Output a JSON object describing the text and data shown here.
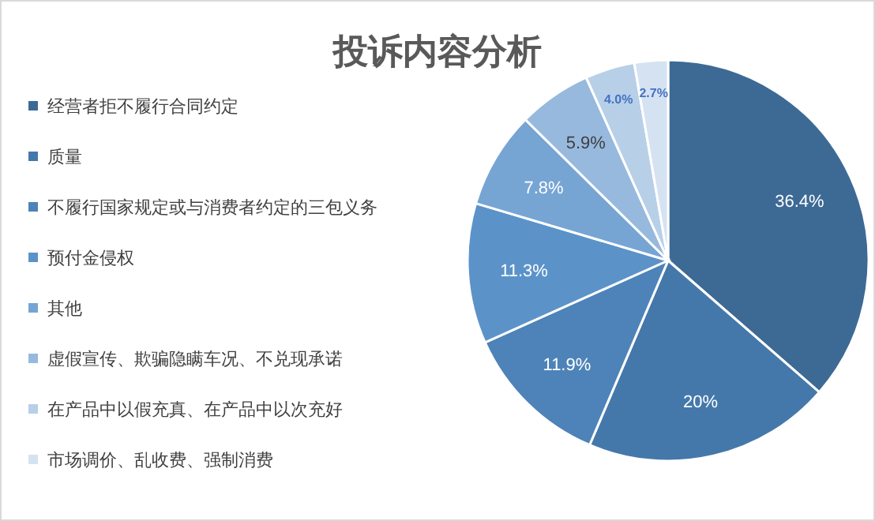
{
  "chart_data": {
    "type": "pie",
    "title": "投诉内容分析",
    "categories": [
      "经营者拒不履行合同约定",
      "质量",
      "不履行国家规定或与消费者约定的三包义务",
      "预付金侵权",
      "其他",
      "虚假宣传、欺骗隐瞒车况、不兑现承诺",
      "在产品中以假充真、在产品中以次充好",
      "市场调价、乱收费、强制消费"
    ],
    "values": [
      36.4,
      20,
      11.9,
      11.3,
      7.8,
      5.9,
      4.0,
      2.7
    ],
    "colors": [
      "#3d6a95",
      "#4578aa",
      "#4d83b8",
      "#5b93c9",
      "#76a5d4",
      "#97b9de",
      "#b8cfe8",
      "#d5e2f2"
    ],
    "value_labels": [
      "36.4%",
      "20%",
      "11.9%",
      "11.3%",
      "7.8%",
      "5.9%",
      "4.0%",
      "2.7%"
    ],
    "legend": "left"
  }
}
